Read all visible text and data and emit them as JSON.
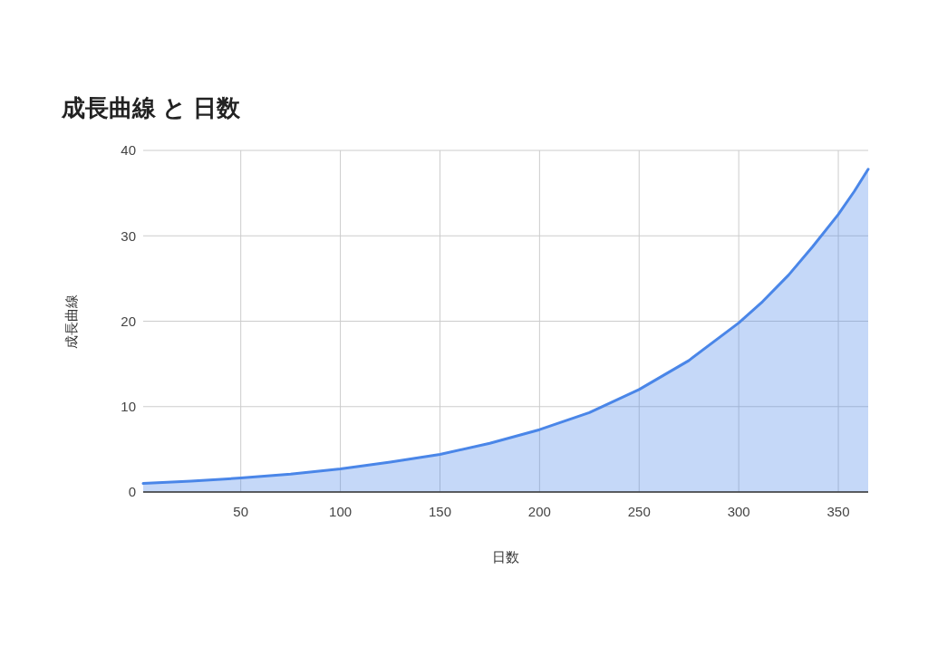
{
  "chart_data": {
    "type": "area",
    "title": "成長曲線 と 日数",
    "xlabel": "日数",
    "ylabel": "成長曲線",
    "x": [
      1,
      25,
      50,
      75,
      100,
      125,
      150,
      175,
      200,
      225,
      250,
      275,
      300,
      312,
      325,
      337,
      350,
      358,
      365
    ],
    "series": [
      {
        "color": "#4a86e8",
        "values": [
          1.0,
          1.28,
          1.64,
          2.1,
          2.7,
          3.5,
          4.4,
          5.7,
          7.3,
          9.3,
          12.0,
          15.4,
          19.8,
          22.3,
          25.4,
          28.7,
          32.5,
          35.2,
          37.8
        ]
      }
    ],
    "xlim": [
      1,
      365
    ],
    "xticks": [
      50,
      100,
      150,
      200,
      250,
      300,
      350
    ],
    "ylim": [
      0,
      40
    ],
    "yticks": [
      0,
      10,
      20,
      30,
      40
    ],
    "grid": true
  }
}
